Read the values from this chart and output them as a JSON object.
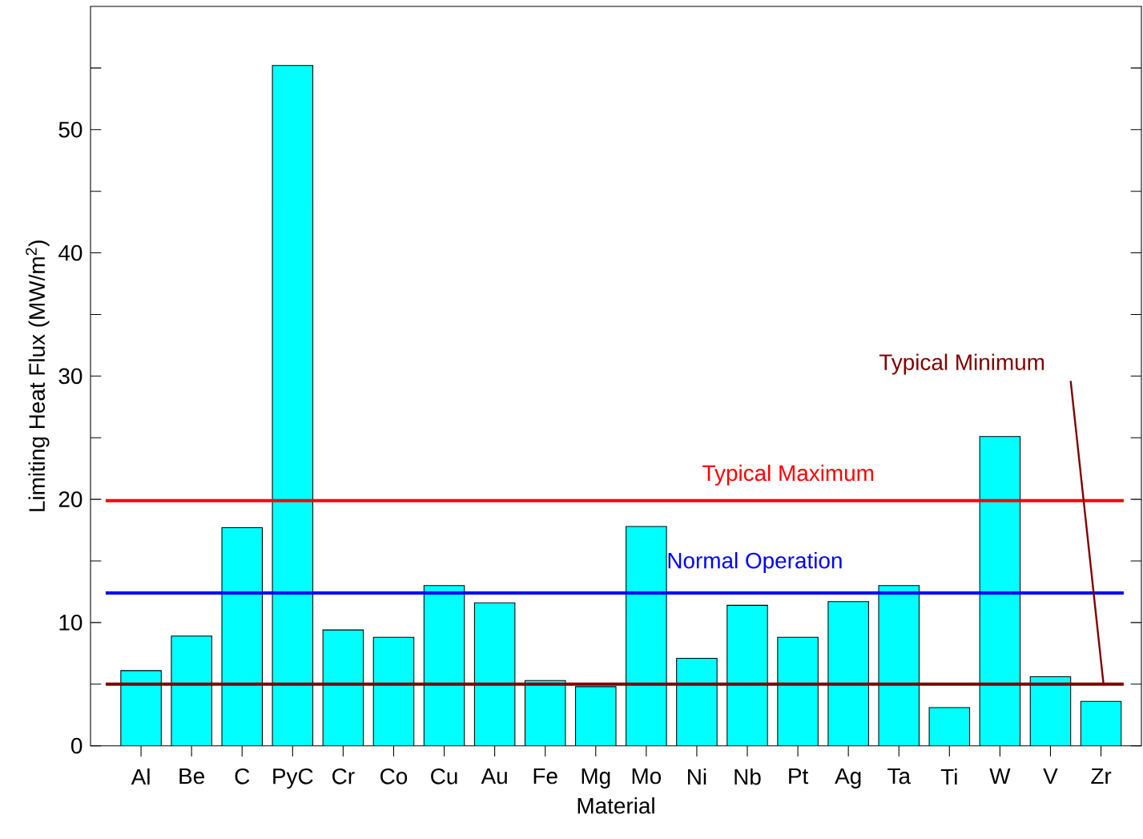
{
  "chart_data": {
    "type": "bar",
    "xlabel": "Material",
    "ylabel": "Limiting Heat Flux (MW/m$^{2}$)",
    "categories": [
      "Al",
      "Be",
      "C",
      "PyC",
      "Cr",
      "Co",
      "Cu",
      "Au",
      "Fe",
      "Mg",
      "Mo",
      "Ni",
      "Nb",
      "Pt",
      "Ag",
      "Ta",
      "Ti",
      "W",
      "V",
      "Zr"
    ],
    "values": [
      6.1,
      8.9,
      17.7,
      55.2,
      9.4,
      8.8,
      13.0,
      11.6,
      5.3,
      4.8,
      17.8,
      7.1,
      11.4,
      8.8,
      11.7,
      13.0,
      3.1,
      25.1,
      5.6,
      3.6
    ],
    "color": "#00ffff",
    "ylim": [
      0,
      60
    ],
    "yticks": [
      0,
      {
        "value": 5,
        "label": null
      },
      10,
      {
        "value": 15,
        "label": null
      },
      20,
      {
        "value": 25,
        "label": null
      },
      30,
      {
        "value": 35,
        "label": null
      },
      40,
      {
        "value": 45,
        "label": null
      },
      50,
      {
        "value": 55,
        "label": null
      }
    ],
    "ref_lines": [
      {
        "axis": "y",
        "value": 19.9,
        "label": "Typical Maximum",
        "color": "#ff0000"
      },
      {
        "axis": "y",
        "value": 12.4,
        "label": "Normal Operation",
        "color": "#0000ff"
      },
      {
        "axis": "y",
        "value": 5.0,
        "label": "Typical Minimum",
        "color": "#800000"
      }
    ]
  }
}
